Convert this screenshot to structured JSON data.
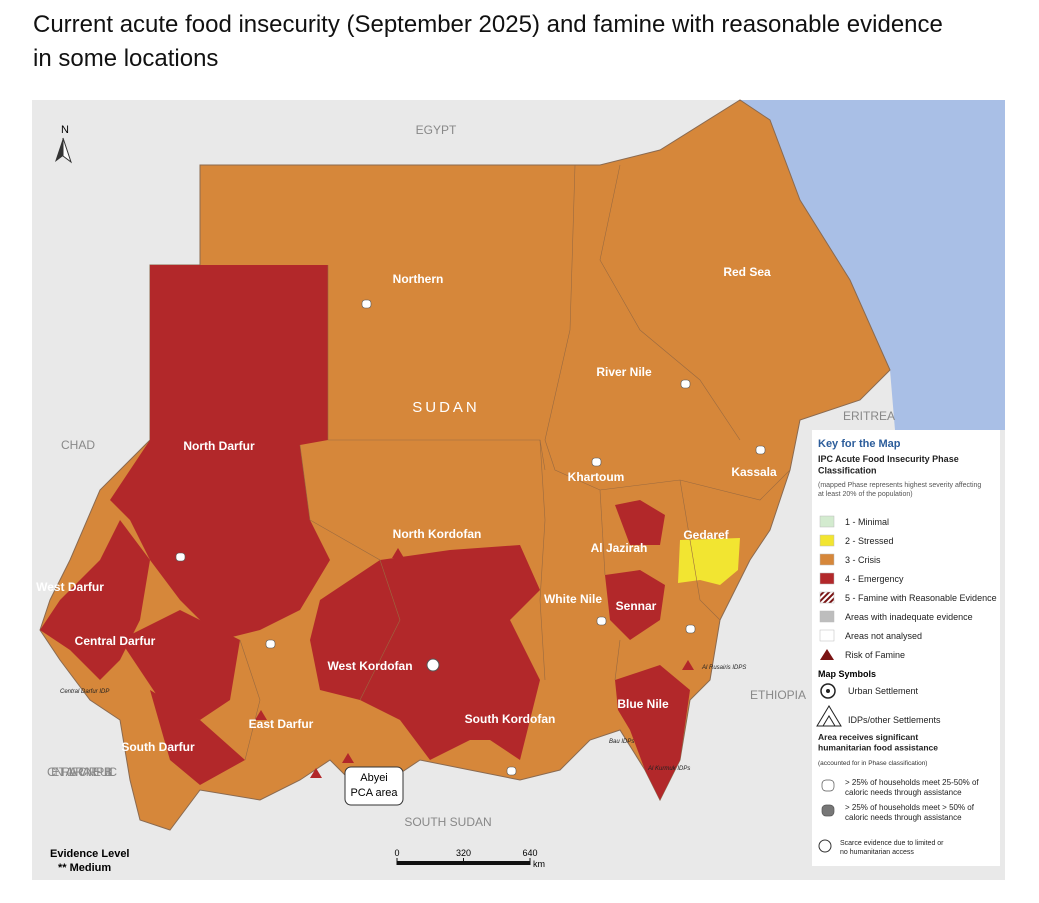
{
  "title": "Current acute food insecurity (September 2025) and famine with reasonable evidence in some locations",
  "map": {
    "north": "N",
    "country_name": "SUDAN",
    "neighbours": [
      "EGYPT",
      "CHAD",
      "ERITREA",
      "ETHIOPIA",
      "CENTRAL AFRICAN REPUBLIC",
      "SOUTH SUDAN"
    ],
    "states": [
      "Northern",
      "Red Sea",
      "River Nile",
      "North Darfur",
      "Khartoum",
      "Kassala",
      "North Kordofan",
      "Gedaref",
      "Al Jazirah",
      "West Darfur",
      "White Nile",
      "Sennar",
      "Central Darfur",
      "West Kordofan",
      "South Kordofan",
      "Blue Nile",
      "East Darfur",
      "South Darfur"
    ],
    "camps": [
      "Central Darfur IDP",
      "Al Rusairis IDPS",
      "Bau IDPs",
      "Al Kurmuk IDPs"
    ],
    "abyei": [
      "Abyei",
      "PCA area"
    ],
    "evidence_title": "Evidence Level",
    "evidence_value": "** Medium",
    "scale": {
      "ticks": [
        0,
        320,
        640
      ],
      "unit": "km"
    }
  },
  "legend": {
    "title": "Key for the Map",
    "heading": "IPC Acute Food Insecurity Phase Classification",
    "note": "(mapped Phase represents highest severity affecting at least 20% of the population)",
    "phases": [
      {
        "label": "1 - Minimal",
        "color": "#d3ebcf"
      },
      {
        "label": "2 - Stressed",
        "color": "#f2e531"
      },
      {
        "label": "3 - Crisis",
        "color": "#d6873a"
      },
      {
        "label": "4 - Emergency",
        "color": "#b2282a"
      },
      {
        "label": "5 - Famine with Reasonable Evidence",
        "color": "#7a1414",
        "hatch": true
      },
      {
        "label": "Areas with inadequate evidence",
        "color": "#bdbdbd"
      },
      {
        "label": "Areas not analysed",
        "color": "#ffffff"
      }
    ],
    "risk": "Risk of Famine",
    "symbols_title": "Map Symbols",
    "urban": "Urban Settlement",
    "idps": "IDPs/other Settlements",
    "assistance_title": "Area receives significant humanitarian food assistance",
    "assistance_note": "(accounted for in Phase classification)",
    "assistance": [
      "> 25% of households meet 25-50% of caloric needs through assistance",
      "> 25% of households meet > 50% of caloric needs through assistance"
    ],
    "scarce": "Scarce evidence due to limited or no humanitarian access"
  }
}
